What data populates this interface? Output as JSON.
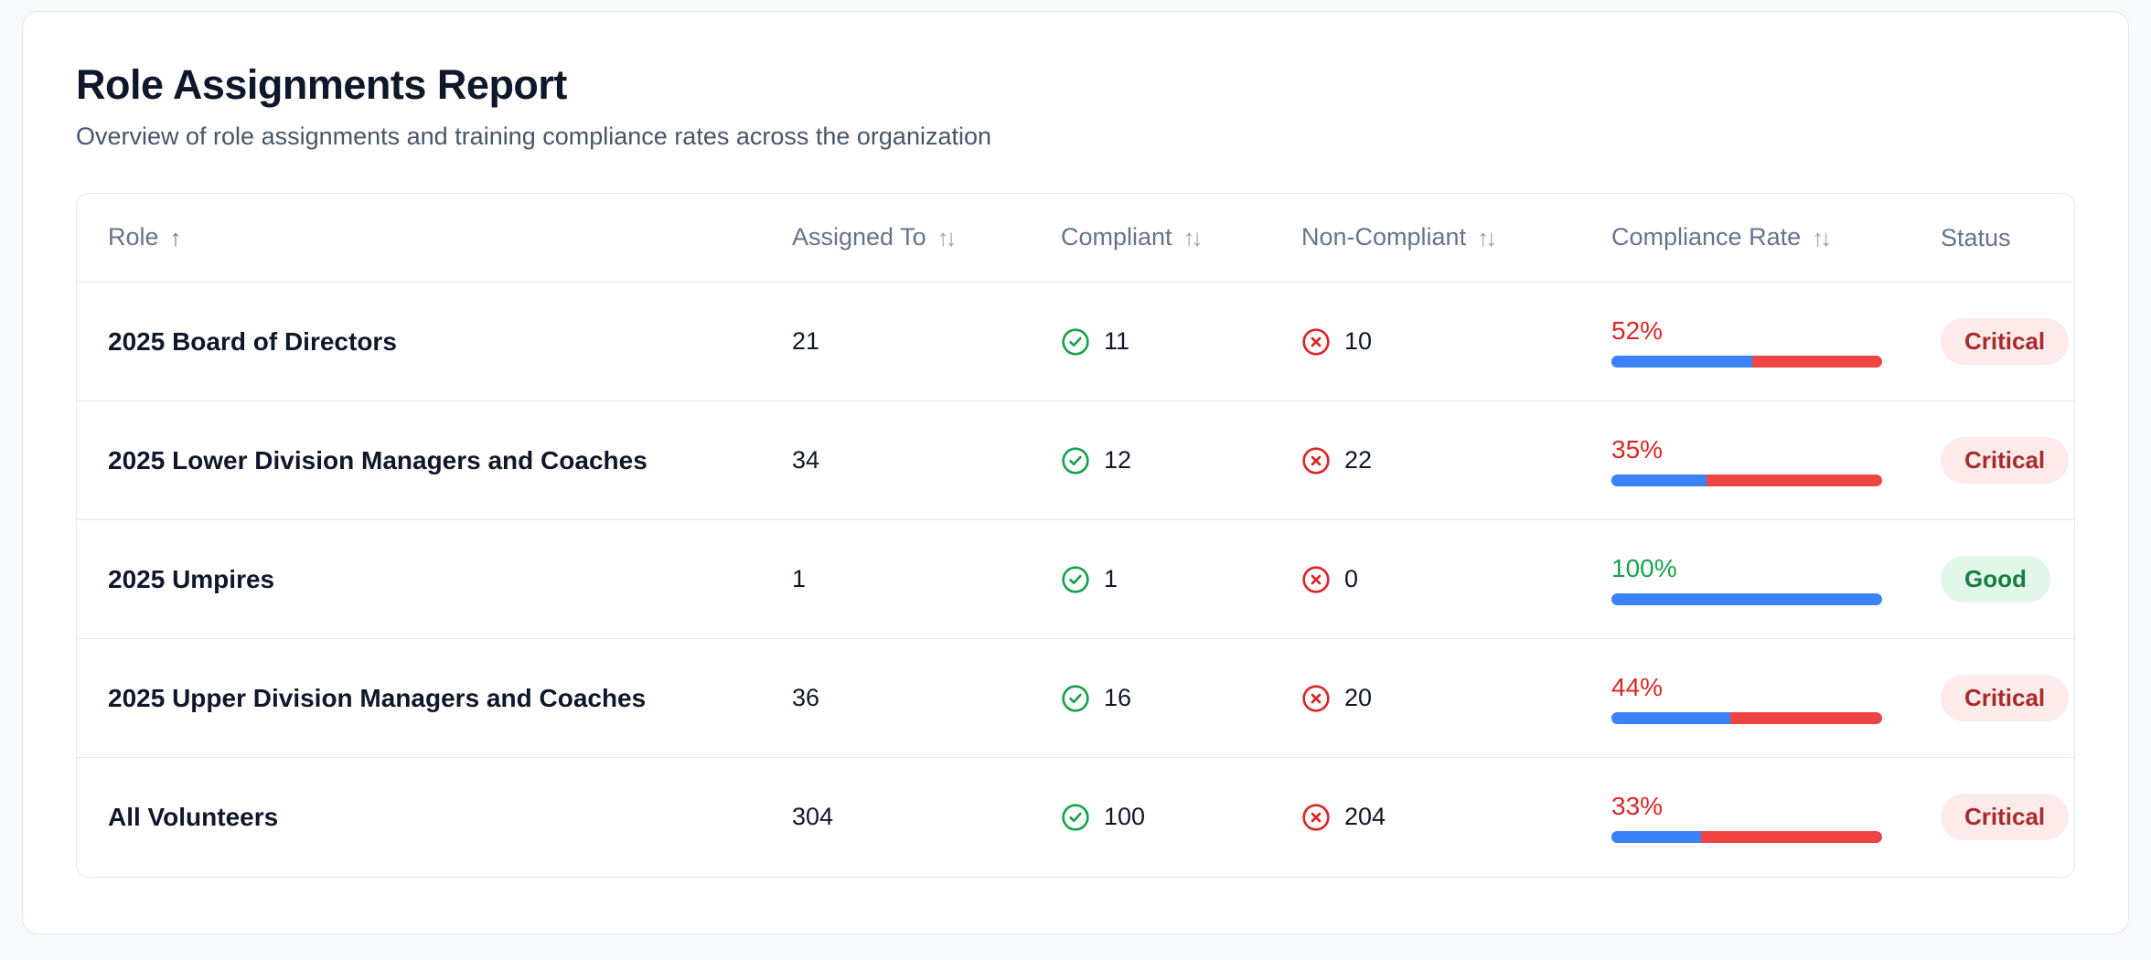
{
  "page": {
    "title": "Role Assignments Report",
    "subtitle": "Overview of role assignments and training compliance rates across the organization"
  },
  "icons": {
    "sort_asc": "↑",
    "sort_both": "↑↓",
    "compliant_icon": "check-circle",
    "non_compliant_icon": "x-circle"
  },
  "colors": {
    "bar_fill": "#3b82f6",
    "bar_rest": "#ef4444",
    "rate_bad": "#dc2626",
    "rate_good": "#16a34a",
    "badge_critical_bg": "#fdeaea",
    "badge_critical_text": "#a82a2a",
    "badge_good_bg": "#e3f6ea",
    "badge_good_text": "#15803d"
  },
  "table": {
    "columns": [
      {
        "label": "Role",
        "sort": "asc"
      },
      {
        "label": "Assigned To",
        "sort": "both"
      },
      {
        "label": "Compliant",
        "sort": "both"
      },
      {
        "label": "Non-Compliant",
        "sort": "both"
      },
      {
        "label": "Compliance Rate",
        "sort": "both"
      },
      {
        "label": "Status",
        "sort": "none"
      }
    ],
    "rows": [
      {
        "role": "2025 Board of Directors",
        "assigned": "21",
        "compliant": "11",
        "non_compliant": "10",
        "rate_label": "52%",
        "rate": 52,
        "status": "Critical",
        "status_type": "critical"
      },
      {
        "role": "2025 Lower Division Managers and Coaches",
        "assigned": "34",
        "compliant": "12",
        "non_compliant": "22",
        "rate_label": "35%",
        "rate": 35,
        "status": "Critical",
        "status_type": "critical"
      },
      {
        "role": "2025 Umpires",
        "assigned": "1",
        "compliant": "1",
        "non_compliant": "0",
        "rate_label": "100%",
        "rate": 100,
        "status": "Good",
        "status_type": "good"
      },
      {
        "role": "2025 Upper Division Managers and Coaches",
        "assigned": "36",
        "compliant": "16",
        "non_compliant": "20",
        "rate_label": "44%",
        "rate": 44,
        "status": "Critical",
        "status_type": "critical"
      },
      {
        "role": "All Volunteers",
        "assigned": "304",
        "compliant": "100",
        "non_compliant": "204",
        "rate_label": "33%",
        "rate": 33,
        "status": "Critical",
        "status_type": "critical"
      }
    ]
  }
}
